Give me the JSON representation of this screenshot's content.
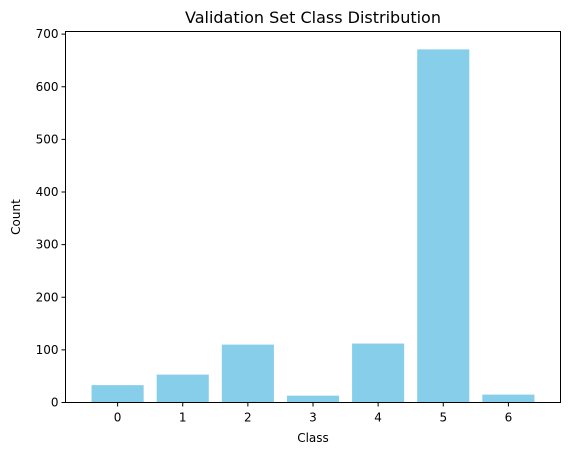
{
  "chart_data": {
    "type": "bar",
    "title": "Validation Set Class Distribution",
    "xlabel": "Class",
    "ylabel": "Count",
    "categories": [
      "0",
      "1",
      "2",
      "3",
      "4",
      "5",
      "6"
    ],
    "values": [
      33,
      53,
      110,
      13,
      112,
      671,
      15
    ],
    "ylim": [
      0,
      705
    ],
    "yticks": [
      0,
      100,
      200,
      300,
      400,
      500,
      600,
      700
    ],
    "bar_color": "#87ceeb",
    "grid": false,
    "legend": "none"
  }
}
